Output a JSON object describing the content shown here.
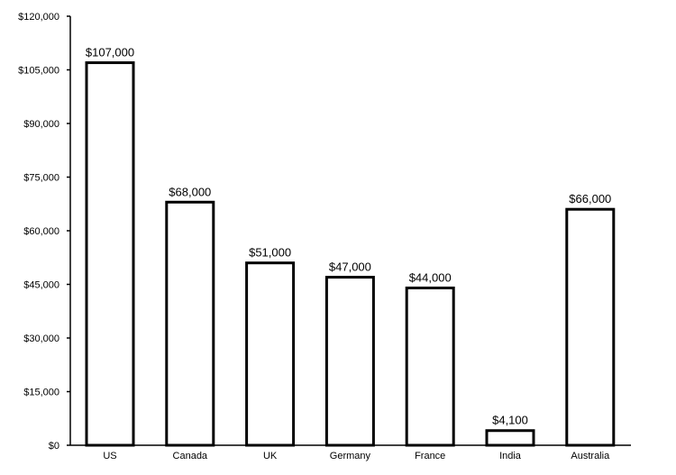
{
  "chart_data": {
    "type": "bar",
    "title": "",
    "xlabel": "",
    "ylabel": "",
    "categories": [
      "US",
      "Canada",
      "UK",
      "Germany",
      "France",
      "India",
      "Australia"
    ],
    "values": [
      107000,
      68000,
      51000,
      47000,
      44000,
      4100,
      66000
    ],
    "data_labels": [
      "$107,000",
      "$68,000",
      "$51,000",
      "$47,000",
      "$44,000",
      "$4,100",
      "$66,000"
    ],
    "ylim": [
      0,
      120000
    ],
    "yticks": [
      0,
      15000,
      30000,
      45000,
      60000,
      75000,
      90000,
      105000,
      120000
    ],
    "ytick_labels": [
      "$0",
      "$15,000",
      "$30,000",
      "$45,000",
      "$60,000",
      "$75,000",
      "$90,000",
      "$105,000",
      "$120,000"
    ],
    "grid": false,
    "legend": "none",
    "colors": {
      "bar_fill": "#ffffff",
      "bar_stroke": "#000000",
      "axis": "#000000",
      "text": "#000000"
    }
  }
}
